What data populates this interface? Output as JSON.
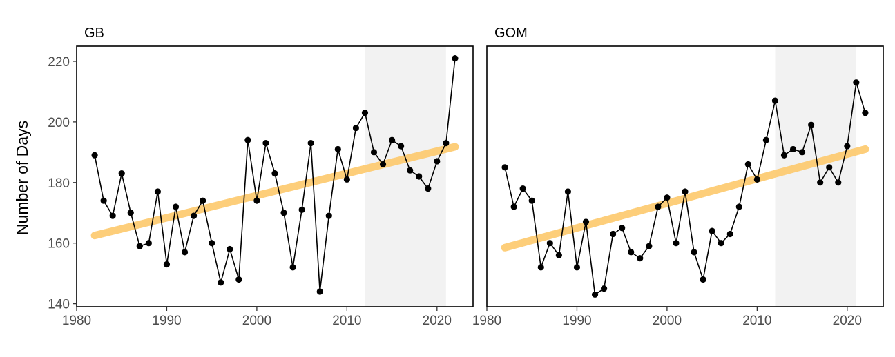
{
  "chart_data": {
    "type": "line",
    "ylabel": "Number of Days",
    "xlim": [
      1980,
      2024
    ],
    "ylim": [
      139,
      225
    ],
    "xticks": [
      1980,
      1990,
      2000,
      2010,
      2020
    ],
    "yticks": [
      140,
      160,
      180,
      200,
      220
    ],
    "colors": {
      "series": "#000000",
      "trend": "#FDC96B",
      "shade": "#f2f2f2",
      "frame": "#000000",
      "tick_text": "#4d4d4d"
    },
    "panels": [
      {
        "title": "GB",
        "shaded_range": [
          2012,
          2021
        ],
        "trend": {
          "x": [
            1982,
            2022
          ],
          "y": [
            162.5,
            191.8
          ]
        },
        "x": [
          1982,
          1983,
          1984,
          1985,
          1986,
          1987,
          1988,
          1989,
          1990,
          1991,
          1992,
          1993,
          1994,
          1995,
          1996,
          1997,
          1998,
          1999,
          2000,
          2001,
          2002,
          2003,
          2004,
          2005,
          2006,
          2007,
          2008,
          2009,
          2010,
          2011,
          2012,
          2013,
          2014,
          2015,
          2016,
          2017,
          2018,
          2019,
          2020,
          2021,
          2022
        ],
        "y": [
          189,
          174,
          169,
          183,
          170,
          159,
          160,
          177,
          153,
          172,
          157,
          169,
          174,
          160,
          147,
          158,
          148,
          194,
          174,
          193,
          183,
          170,
          152,
          171,
          193,
          144,
          169,
          191,
          181,
          198,
          203,
          190,
          186,
          194,
          192,
          184,
          182,
          178,
          187,
          193,
          221
        ]
      },
      {
        "title": "GOM",
        "shaded_range": [
          2012,
          2021
        ],
        "trend": {
          "x": [
            1982,
            2022
          ],
          "y": [
            158.5,
            191.0
          ]
        },
        "x": [
          1982,
          1983,
          1984,
          1985,
          1986,
          1987,
          1988,
          1989,
          1990,
          1991,
          1992,
          1993,
          1994,
          1995,
          1996,
          1997,
          1998,
          1999,
          2000,
          2001,
          2002,
          2003,
          2004,
          2005,
          2006,
          2007,
          2008,
          2009,
          2010,
          2011,
          2012,
          2013,
          2014,
          2015,
          2016,
          2017,
          2018,
          2019,
          2020,
          2021,
          2022
        ],
        "y": [
          185,
          172,
          178,
          174,
          152,
          160,
          156,
          177,
          152,
          167,
          143,
          145,
          163,
          165,
          157,
          155,
          159,
          172,
          175,
          160,
          177,
          157,
          148,
          164,
          160,
          163,
          172,
          186,
          181,
          194,
          207,
          189,
          191,
          190,
          199,
          180,
          185,
          180,
          192,
          213,
          203
        ]
      }
    ]
  }
}
